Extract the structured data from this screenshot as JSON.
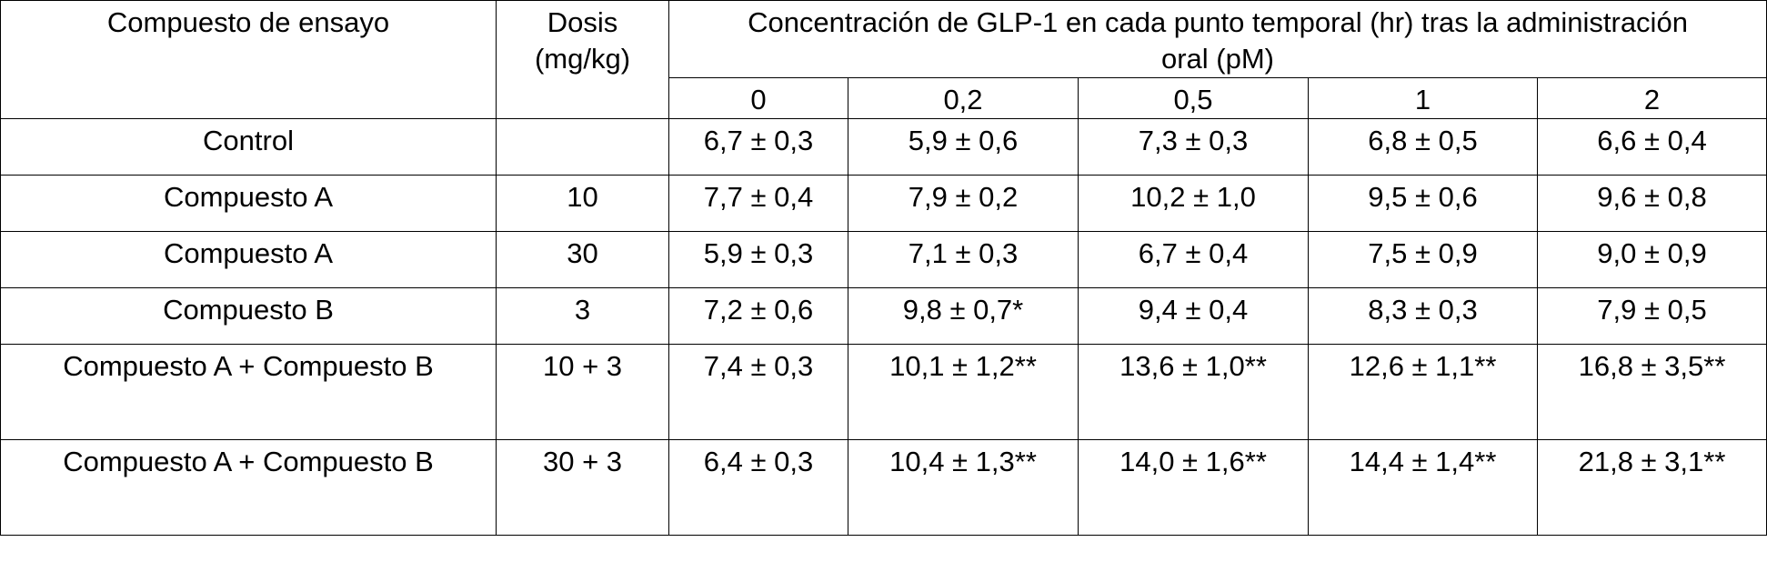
{
  "table": {
    "header": {
      "compound_label": "Compuesto de ensayo",
      "dose_label": "Dosis (mg/kg)",
      "concentration_label": "Concentración de GLP-1 en cada punto temporal (hr) tras la administración oral (pM)",
      "timepoints": [
        "0",
        "0,2",
        "0,5",
        "1",
        "2"
      ]
    },
    "rows": [
      {
        "compound": "Control",
        "dose": "",
        "values": [
          "6,7 ± 0,3",
          "5,9 ± 0,6",
          "7,3 ± 0,3",
          "6,8 ± 0,5",
          "6,6 ± 0,4"
        ]
      },
      {
        "compound": "Compuesto A",
        "dose": "10",
        "values": [
          "7,7 ± 0,4",
          "7,9 ± 0,2",
          "10,2 ± 1,0",
          "9,5 ± 0,6",
          "9,6 ± 0,8"
        ]
      },
      {
        "compound": "Compuesto A",
        "dose": "30",
        "values": [
          "5,9 ± 0,3",
          "7,1 ± 0,3",
          "6,7 ± 0,4",
          "7,5 ± 0,9",
          "9,0 ± 0,9"
        ]
      },
      {
        "compound": "Compuesto B",
        "dose": "3",
        "values": [
          "7,2 ± 0,6",
          "9,8 ± 0,7*",
          "9,4 ± 0,4",
          "8,3 ± 0,3",
          "7,9 ± 0,5"
        ]
      },
      {
        "compound": "Compuesto A + Compuesto B",
        "dose": "10 + 3",
        "values": [
          "7,4 ± 0,3",
          "10,1 ± 1,2**",
          "13,6 ± 1,0**",
          "12,6 ± 1,1**",
          "16,8 ± 3,5**"
        ]
      },
      {
        "compound": "Compuesto A + Compuesto B",
        "dose": "30 + 3",
        "values": [
          "6,4 ± 0,3",
          "10,4 ± 1,3**",
          "14,0 ± 1,6**",
          "14,4 ± 1,4**",
          "21,8 ± 3,1**"
        ]
      }
    ]
  }
}
